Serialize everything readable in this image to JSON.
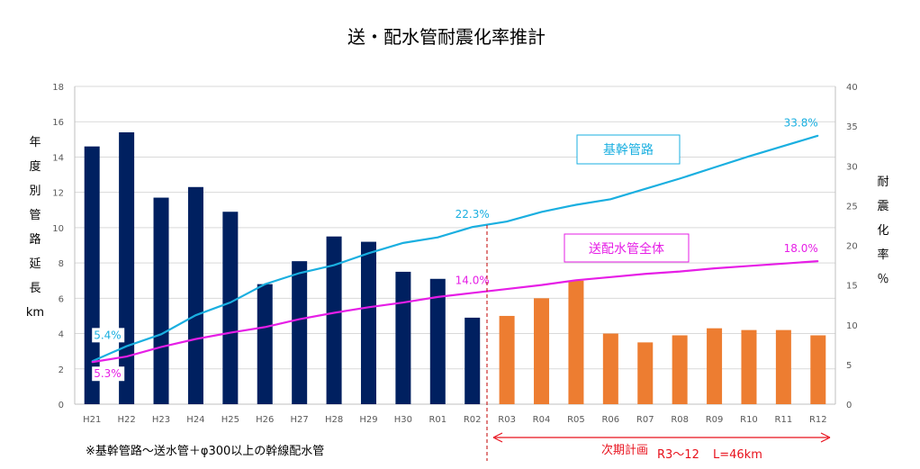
{
  "chart_data": {
    "type": "bar+line",
    "title": "送・配水管耐震化率推計",
    "categories": [
      "H21",
      "H22",
      "H23",
      "H24",
      "H25",
      "H26",
      "H27",
      "H28",
      "H29",
      "H30",
      "R01",
      "R02",
      "R03",
      "R04",
      "R05",
      "R06",
      "R07",
      "R08",
      "R09",
      "R10",
      "R11",
      "R12"
    ],
    "bar_series": {
      "name": "年度別管路延長",
      "values": [
        14.6,
        15.4,
        11.7,
        12.3,
        10.9,
        6.8,
        8.1,
        9.5,
        9.2,
        7.5,
        7.1,
        4.9,
        5.0,
        6.0,
        7.0,
        4.0,
        3.5,
        3.9,
        4.3,
        4.2,
        4.2,
        3.9
      ],
      "actual_color": "#002060",
      "plan_color": "#ED7D31",
      "plan_start_index": 12
    },
    "line_series": [
      {
        "name": "基幹管路",
        "color": "#1AAFE0",
        "values": [
          5.4,
          7.3,
          8.8,
          11.2,
          12.8,
          15.1,
          16.5,
          17.5,
          19.0,
          20.3,
          21.0,
          22.3,
          23.0,
          24.2,
          25.1,
          25.8,
          27.1,
          28.4,
          29.8,
          31.2,
          32.5,
          33.8
        ]
      },
      {
        "name": "送配水管全体",
        "color": "#E61EE6",
        "values": [
          5.3,
          6.0,
          7.2,
          8.2,
          9.0,
          9.7,
          10.7,
          11.5,
          12.2,
          12.8,
          13.5,
          14.0,
          14.5,
          15.0,
          15.6,
          16.0,
          16.4,
          16.7,
          17.1,
          17.4,
          17.7,
          18.0
        ]
      }
    ],
    "y_left": {
      "label": "年度別管路延長km",
      "label_chars": [
        "年",
        "度",
        "別",
        "管",
        "路",
        "延",
        "長",
        "km"
      ],
      "range": [
        0,
        18
      ],
      "ticks": [
        "0",
        "2",
        "4",
        "6",
        "8",
        "10",
        "12",
        "14",
        "16",
        "18"
      ]
    },
    "y_right": {
      "label": "耐震化率%",
      "label_chars": [
        "耐",
        "震",
        "化",
        "率",
        "％"
      ],
      "range": [
        0,
        40
      ],
      "ticks": [
        "0",
        "5",
        "10",
        "15",
        "20",
        "25",
        "30",
        "35",
        "40"
      ]
    },
    "grid": true,
    "data_labels": [
      {
        "text": "5.4%",
        "series": "基幹管路",
        "index": 0
      },
      {
        "text": "22.3%",
        "series": "基幹管路",
        "index": 11
      },
      {
        "text": "33.8%",
        "series": "基幹管路",
        "index": 21
      },
      {
        "text": "5.3%",
        "series": "送配水管全体",
        "index": 0
      },
      {
        "text": "14.0%",
        "series": "送配水管全体",
        "index": 11
      },
      {
        "text": "18.0%",
        "series": "送配水管全体",
        "index": 21
      }
    ],
    "legend": {
      "kikan": "基幹管路",
      "zentai": "送配水管全体"
    },
    "annotations": {
      "footnote": "※基幹管路～送水管＋φ300以上の幹線配水管",
      "plan_label": "次期計画",
      "plan_range": "R3～12",
      "plan_length": "L=46km"
    }
  }
}
